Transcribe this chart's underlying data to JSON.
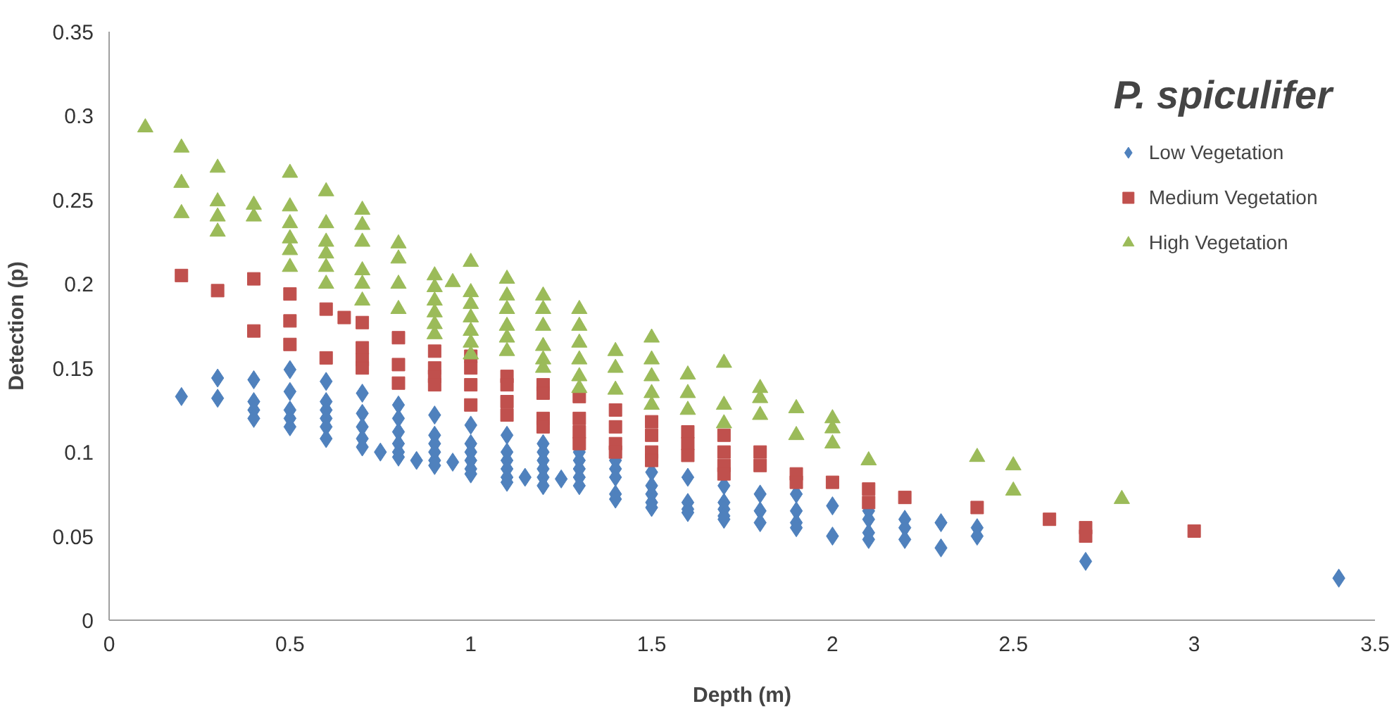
{
  "chart_data": {
    "type": "scatter",
    "title": "P. spiculifer",
    "xlabel": "Depth (m)",
    "ylabel": "Detection (p)",
    "xlim": [
      0,
      3.5
    ],
    "ylim": [
      0,
      0.35
    ],
    "xticks": [
      0,
      0.5,
      1,
      1.5,
      2,
      2.5,
      3,
      3.5
    ],
    "yticks": [
      0,
      0.05,
      0.1,
      0.15,
      0.2,
      0.25,
      0.3,
      0.35
    ],
    "grid": false,
    "legend": "top right",
    "series": [
      {
        "name": "Low Vegetation",
        "color": "#4f81bd",
        "marker": "diamond",
        "x": [
          0.2,
          0.3,
          0.3,
          0.4,
          0.4,
          0.4,
          0.4,
          0.5,
          0.5,
          0.5,
          0.5,
          0.5,
          0.6,
          0.6,
          0.6,
          0.6,
          0.6,
          0.6,
          0.7,
          0.7,
          0.7,
          0.7,
          0.7,
          0.75,
          0.8,
          0.8,
          0.8,
          0.8,
          0.8,
          0.8,
          0.85,
          0.9,
          0.9,
          0.9,
          0.9,
          0.9,
          0.9,
          0.95,
          1.0,
          1.0,
          1.0,
          1.0,
          1.0,
          1.0,
          1.1,
          1.1,
          1.1,
          1.1,
          1.1,
          1.1,
          1.15,
          1.2,
          1.2,
          1.2,
          1.2,
          1.2,
          1.2,
          1.25,
          1.3,
          1.3,
          1.3,
          1.3,
          1.3,
          1.4,
          1.4,
          1.4,
          1.4,
          1.4,
          1.5,
          1.5,
          1.5,
          1.5,
          1.5,
          1.6,
          1.6,
          1.6,
          1.6,
          1.7,
          1.7,
          1.7,
          1.7,
          1.7,
          1.8,
          1.8,
          1.8,
          1.9,
          1.9,
          1.9,
          1.9,
          2.0,
          2.0,
          2.1,
          2.1,
          2.1,
          2.1,
          2.2,
          2.2,
          2.2,
          2.3,
          2.3,
          2.4,
          2.4,
          2.7,
          3.4
        ],
        "values": [
          0.133,
          0.144,
          0.132,
          0.143,
          0.13,
          0.125,
          0.12,
          0.149,
          0.136,
          0.125,
          0.12,
          0.115,
          0.142,
          0.13,
          0.125,
          0.12,
          0.115,
          0.108,
          0.135,
          0.123,
          0.115,
          0.108,
          0.103,
          0.1,
          0.128,
          0.12,
          0.112,
          0.105,
          0.1,
          0.097,
          0.095,
          0.122,
          0.11,
          0.105,
          0.1,
          0.095,
          0.092,
          0.094,
          0.116,
          0.105,
          0.1,
          0.095,
          0.09,
          0.087,
          0.11,
          0.1,
          0.095,
          0.09,
          0.085,
          0.082,
          0.085,
          0.105,
          0.1,
          0.095,
          0.09,
          0.085,
          0.08,
          0.084,
          0.1,
          0.095,
          0.09,
          0.085,
          0.08,
          0.095,
          0.09,
          0.085,
          0.075,
          0.072,
          0.088,
          0.08,
          0.075,
          0.07,
          0.067,
          0.085,
          0.07,
          0.066,
          0.064,
          0.08,
          0.07,
          0.066,
          0.062,
          0.06,
          0.075,
          0.065,
          0.058,
          0.075,
          0.065,
          0.058,
          0.055,
          0.068,
          0.05,
          0.065,
          0.06,
          0.052,
          0.048,
          0.06,
          0.055,
          0.048,
          0.058,
          0.043,
          0.055,
          0.05,
          0.035,
          0.025
        ]
      },
      {
        "name": "Medium Vegetation",
        "color": "#c0504d",
        "marker": "square",
        "x": [
          0.2,
          0.3,
          0.4,
          0.4,
          0.5,
          0.5,
          0.5,
          0.6,
          0.6,
          0.65,
          0.7,
          0.7,
          0.7,
          0.7,
          0.8,
          0.8,
          0.8,
          0.9,
          0.9,
          0.9,
          0.9,
          1.0,
          1.0,
          1.0,
          1.0,
          1.1,
          1.1,
          1.1,
          1.1,
          1.2,
          1.2,
          1.2,
          1.2,
          1.3,
          1.3,
          1.3,
          1.3,
          1.4,
          1.4,
          1.4,
          1.4,
          1.5,
          1.5,
          1.5,
          1.5,
          1.6,
          1.6,
          1.6,
          1.7,
          1.7,
          1.7,
          1.7,
          1.8,
          1.8,
          1.9,
          1.9,
          2.0,
          2.1,
          2.1,
          2.2,
          2.4,
          2.6,
          2.7,
          2.7,
          3.0
        ],
        "values": [
          0.205,
          0.196,
          0.203,
          0.172,
          0.194,
          0.178,
          0.164,
          0.185,
          0.156,
          0.18,
          0.177,
          0.162,
          0.155,
          0.15,
          0.168,
          0.152,
          0.141,
          0.16,
          0.15,
          0.145,
          0.14,
          0.157,
          0.15,
          0.14,
          0.128,
          0.145,
          0.14,
          0.13,
          0.122,
          0.14,
          0.135,
          0.12,
          0.115,
          0.133,
          0.12,
          0.112,
          0.105,
          0.125,
          0.115,
          0.105,
          0.1,
          0.118,
          0.11,
          0.1,
          0.095,
          0.112,
          0.105,
          0.098,
          0.11,
          0.1,
          0.092,
          0.087,
          0.1,
          0.092,
          0.087,
          0.082,
          0.082,
          0.078,
          0.07,
          0.073,
          0.067,
          0.06,
          0.055,
          0.05,
          0.053
        ]
      },
      {
        "name": "High Vegetation",
        "color": "#9bbb59",
        "marker": "triangle",
        "x": [
          0.1,
          0.2,
          0.2,
          0.2,
          0.3,
          0.3,
          0.3,
          0.3,
          0.4,
          0.4,
          0.5,
          0.5,
          0.5,
          0.5,
          0.5,
          0.5,
          0.6,
          0.6,
          0.6,
          0.6,
          0.6,
          0.6,
          0.7,
          0.7,
          0.7,
          0.7,
          0.7,
          0.7,
          0.8,
          0.8,
          0.8,
          0.8,
          0.9,
          0.9,
          0.9,
          0.9,
          0.9,
          0.9,
          0.95,
          1.0,
          1.0,
          1.0,
          1.0,
          1.0,
          1.0,
          1.0,
          1.1,
          1.1,
          1.1,
          1.1,
          1.1,
          1.1,
          1.2,
          1.2,
          1.2,
          1.2,
          1.2,
          1.2,
          1.3,
          1.3,
          1.3,
          1.3,
          1.3,
          1.3,
          1.4,
          1.4,
          1.4,
          1.5,
          1.5,
          1.5,
          1.5,
          1.5,
          1.6,
          1.6,
          1.6,
          1.7,
          1.7,
          1.7,
          1.8,
          1.8,
          1.8,
          1.9,
          1.9,
          2.0,
          2.0,
          2.0,
          2.1,
          2.4,
          2.5,
          2.5,
          2.8
        ],
        "values": [
          0.293,
          0.281,
          0.26,
          0.242,
          0.269,
          0.249,
          0.24,
          0.231,
          0.247,
          0.24,
          0.266,
          0.246,
          0.236,
          0.227,
          0.22,
          0.21,
          0.255,
          0.236,
          0.225,
          0.218,
          0.21,
          0.2,
          0.244,
          0.235,
          0.225,
          0.208,
          0.2,
          0.19,
          0.224,
          0.215,
          0.2,
          0.185,
          0.205,
          0.198,
          0.19,
          0.183,
          0.176,
          0.17,
          0.201,
          0.213,
          0.195,
          0.188,
          0.18,
          0.172,
          0.165,
          0.158,
          0.203,
          0.193,
          0.185,
          0.175,
          0.168,
          0.16,
          0.193,
          0.185,
          0.175,
          0.163,
          0.155,
          0.15,
          0.185,
          0.175,
          0.165,
          0.155,
          0.145,
          0.138,
          0.16,
          0.15,
          0.137,
          0.168,
          0.155,
          0.145,
          0.135,
          0.128,
          0.146,
          0.135,
          0.125,
          0.153,
          0.128,
          0.117,
          0.138,
          0.132,
          0.122,
          0.126,
          0.11,
          0.12,
          0.114,
          0.105,
          0.095,
          0.097,
          0.092,
          0.077,
          0.072
        ]
      }
    ]
  }
}
